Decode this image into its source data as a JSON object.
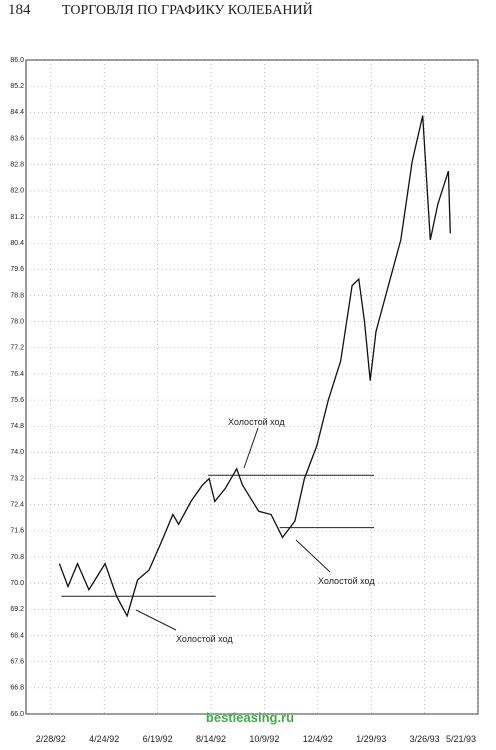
{
  "page_header": {
    "page_number": "184",
    "running_title": "ТОРГОВЛЯ ПО ГРАФИКУ КОЛЕБАНИЙ"
  },
  "watermark": "bestleasing.ru",
  "chart_data": {
    "type": "line",
    "grid": true,
    "xlim": [
      "1992-02-02",
      "1993-05-21"
    ],
    "xticks": [
      {
        "value": "1992-02-28",
        "label": "2/28/92"
      },
      {
        "value": "1992-04-24",
        "label": "4/24/92"
      },
      {
        "value": "1992-06-19",
        "label": "6/19/92"
      },
      {
        "value": "1992-08-14",
        "label": "8/14/92"
      },
      {
        "value": "1992-10-09",
        "label": "10/9/92"
      },
      {
        "value": "1992-12-04",
        "label": "12/4/92"
      },
      {
        "value": "1993-01-29",
        "label": "1/29/93"
      },
      {
        "value": "1993-03-26",
        "label": "3/26/93"
      },
      {
        "value": "1993-05-21",
        "label": "5/21/93"
      }
    ],
    "ylim": [
      66,
      86
    ],
    "yticks": [
      {
        "value": 66,
        "label": "66.0"
      },
      66.8,
      67.6,
      68.4,
      69.2,
      {
        "value": 70,
        "label": "70.0"
      },
      70.8,
      71.6,
      72.4,
      73.2,
      {
        "value": 74,
        "label": "74.0"
      },
      74.8,
      75.6,
      76.4,
      77.2,
      {
        "value": 78,
        "label": "78.0"
      },
      78.8,
      79.6,
      80.4,
      81.2,
      {
        "value": 82,
        "label": "82.0"
      },
      82.8,
      83.6,
      84.4,
      85.2,
      {
        "value": 86,
        "label": "86.0"
      }
    ],
    "x": [
      "1992-03-08",
      "1992-03-17",
      "1992-03-27",
      "1992-04-08",
      "1992-04-25",
      "1992-05-07",
      "1992-05-18",
      "1992-05-29",
      "1992-06-10",
      "1992-06-22",
      "1992-07-05",
      "1992-07-11",
      "1992-07-24",
      "1992-08-05",
      "1992-08-12",
      "1992-08-18",
      "1992-08-29",
      "1992-09-10",
      "1992-09-16",
      "1992-10-03",
      "1992-10-16",
      "1992-10-28",
      "1992-11-10",
      "1992-11-20",
      "1992-12-03",
      "1992-12-15",
      "1992-12-28",
      "1993-01-09",
      "1993-01-16",
      "1993-01-22",
      "1993-01-28",
      "1993-02-03",
      "1993-02-16",
      "1993-03-01",
      "1993-03-13",
      "1993-03-24",
      "1993-04-01",
      "1993-04-09",
      "1993-04-20",
      "1993-04-22"
    ],
    "series": [
      {
        "color": "#111111",
        "values": [
          70.6,
          69.9,
          70.6,
          69.8,
          70.6,
          69.6,
          69.0,
          70.1,
          70.4,
          71.2,
          72.1,
          71.8,
          72.5,
          73.0,
          73.2,
          72.5,
          72.9,
          73.5,
          73.0,
          72.2,
          72.1,
          71.4,
          71.9,
          73.2,
          74.2,
          75.6,
          76.8,
          79.1,
          79.3,
          78.0,
          76.2,
          77.7,
          79.1,
          80.5,
          82.9,
          84.3,
          80.5,
          81.6,
          82.6,
          80.7
        ]
      }
    ],
    "reference_lines": [
      {
        "y": 69.6,
        "x": [
          "1992-03-10",
          "1992-08-19"
        ]
      },
      {
        "y": 73.3,
        "x": [
          "1992-08-11",
          "1993-02-01"
        ]
      },
      {
        "y": 71.7,
        "x": [
          "1992-10-25",
          "1993-02-01"
        ]
      }
    ],
    "annotations": [
      "Холостой ход",
      "Холостой ход",
      "Холостой ход"
    ]
  }
}
